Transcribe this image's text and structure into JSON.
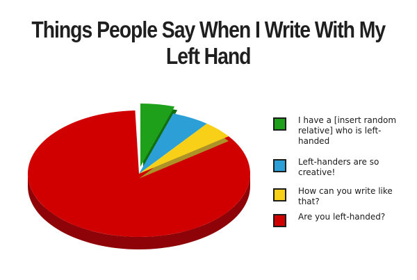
{
  "header": {
    "title_line1": "Things People Say When I Write With My",
    "title_line2": "Left Hand"
  },
  "chart_data": {
    "type": "pie",
    "style": "3d-exploded",
    "title": "Things People Say When I Write With My Left Hand",
    "legend_position": "right",
    "units": "percent (estimated, no data labels shown)",
    "slices": [
      {
        "label": "I have a [insert random relative] who is left-handed",
        "value": 5,
        "color": "#1FA01A",
        "dark": "#116E0E",
        "explode": true,
        "underlay": true
      },
      {
        "label": "Left-handers are so creative!",
        "value": 5.5,
        "color": "#2B9FD6",
        "dark": "#1C6E96",
        "explode": false,
        "underlay": false
      },
      {
        "label": "How can you write like that?",
        "value": 4.5,
        "color": "#F9D018",
        "dark": "#AD9227",
        "explode": false,
        "underlay": true
      },
      {
        "label": "Are you left-handed?",
        "value": 85,
        "color": "#D00000",
        "dark": "#8E0307",
        "explode": false,
        "underlay": false
      }
    ]
  }
}
